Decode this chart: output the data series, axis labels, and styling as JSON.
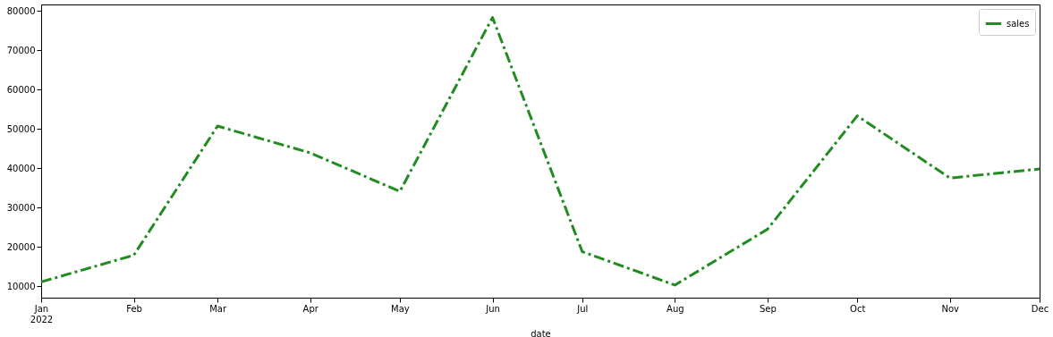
{
  "chart_data": {
    "type": "line",
    "xlabel": "date",
    "x": [
      "2022-01",
      "2022-02",
      "2022-03",
      "2022-04",
      "2022-05",
      "2022-06",
      "2022-07",
      "2022-08",
      "2022-09",
      "2022-10",
      "2022-11",
      "2022-12"
    ],
    "series": [
      {
        "name": "sales",
        "color": "#228b22",
        "values": [
          11100,
          17900,
          50700,
          43900,
          34100,
          78300,
          18800,
          10300,
          24500,
          53300,
          37500,
          39800
        ]
      }
    ],
    "xlim": [
      "2022-01",
      "2022-12"
    ],
    "xticks": [
      {
        "value": "2022-01",
        "label": "Jan\n2022"
      },
      {
        "value": "2022-02",
        "label": "Feb"
      },
      {
        "value": "2022-03",
        "label": "Mar"
      },
      {
        "value": "2022-04",
        "label": "Apr"
      },
      {
        "value": "2022-05",
        "label": "May"
      },
      {
        "value": "2022-06",
        "label": "Jun"
      },
      {
        "value": "2022-07",
        "label": "Jul"
      },
      {
        "value": "2022-08",
        "label": "Aug"
      },
      {
        "value": "2022-09",
        "label": "Sep"
      },
      {
        "value": "2022-10",
        "label": "Oct"
      },
      {
        "value": "2022-11",
        "label": "Nov"
      },
      {
        "value": "2022-12",
        "label": "Dec"
      }
    ],
    "ylim": [
      7100,
      81600
    ],
    "yticks": [
      10000,
      20000,
      30000,
      40000,
      50000,
      60000,
      70000,
      80000
    ],
    "legend": "top right",
    "line_style": "dashed",
    "grid": false
  }
}
